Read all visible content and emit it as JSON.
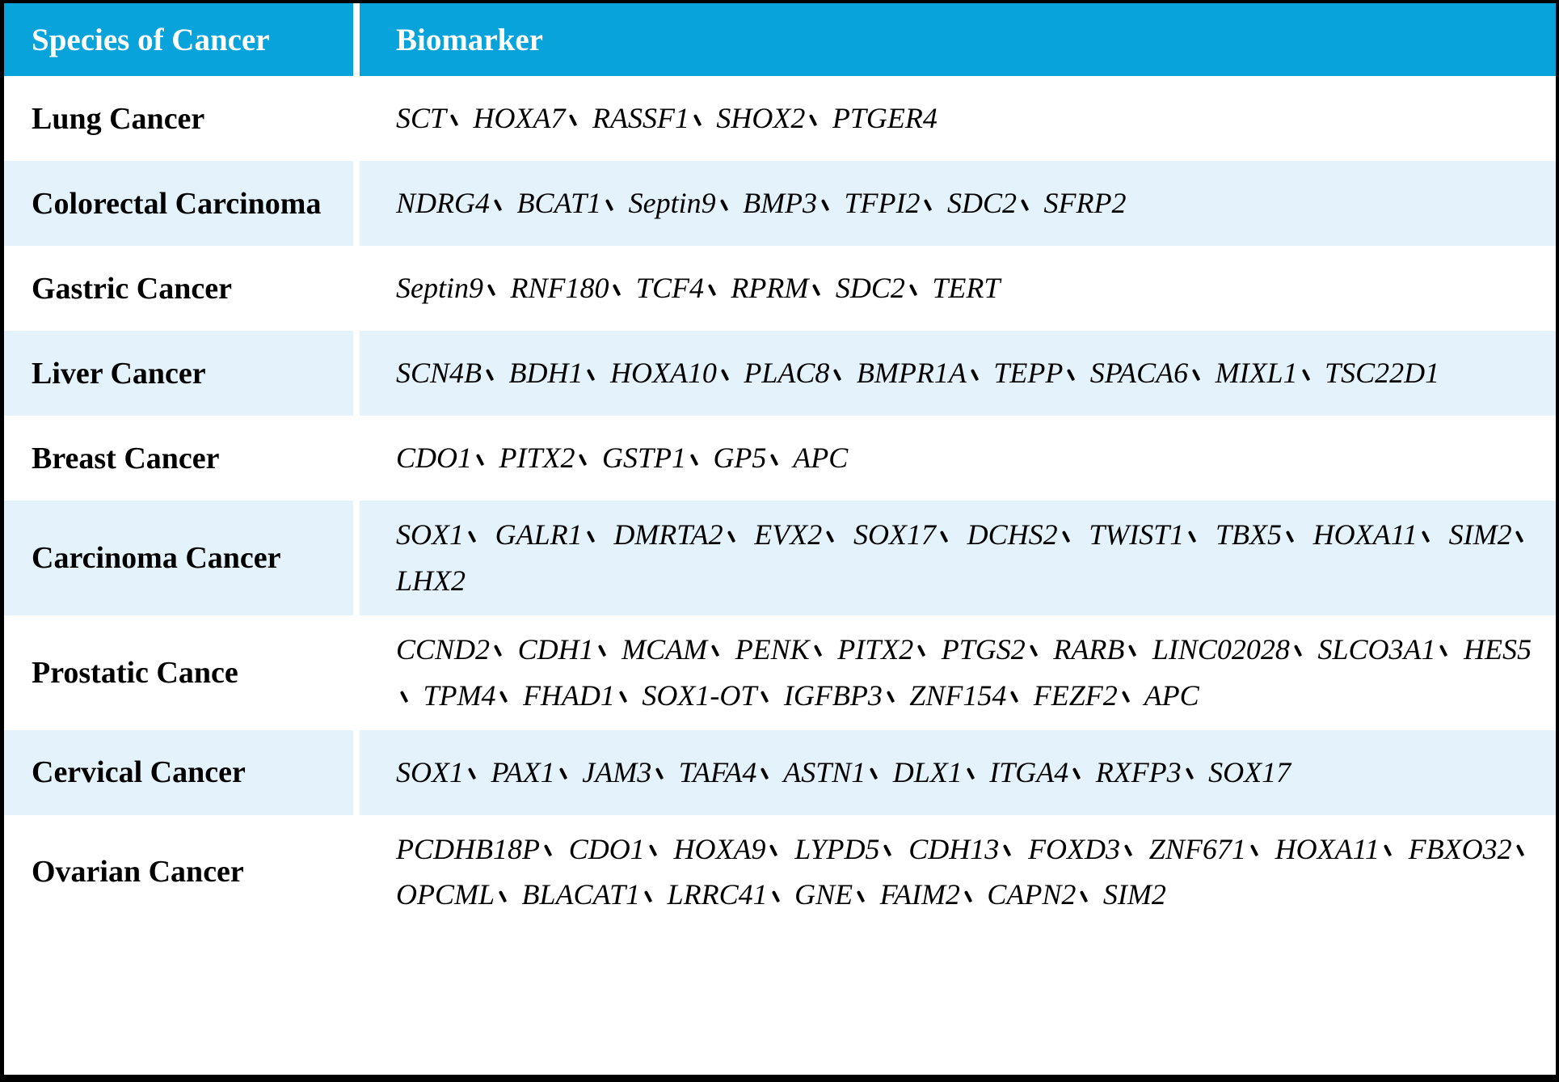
{
  "table": {
    "separator": "、",
    "colors": {
      "header_bg": "#09A3DC",
      "header_text": "#FFFFFF",
      "row_bg": "#FFFFFF",
      "row_alt_bg": "#E4F2FC",
      "border": "#000000",
      "text": "#000000"
    },
    "columns": [
      {
        "label": "Species of Cancer"
      },
      {
        "label": "Biomarker"
      }
    ],
    "rows": [
      {
        "species": "Lung Cancer",
        "biomarkers": [
          "SCT",
          "HOXA7",
          "RASSF1",
          "SHOX2",
          "PTGER4"
        ]
      },
      {
        "species": "Colorectal Carcinoma",
        "biomarkers": [
          "NDRG4",
          "BCAT1",
          "Septin9",
          "BMP3",
          "TFPI2",
          "SDC2",
          "SFRP2"
        ]
      },
      {
        "species": "Gastric Cancer",
        "biomarkers": [
          "Septin9",
          "RNF180",
          "TCF4",
          "RPRM",
          "SDC2",
          "TERT"
        ]
      },
      {
        "species": "Liver Cancer",
        "biomarkers": [
          "SCN4B",
          "BDH1",
          "HOXA10",
          "PLAC8",
          "BMPR1A",
          "TEPP",
          "SPACA6",
          "MIXL1",
          "TSC22D1"
        ]
      },
      {
        "species": "Breast Cancer",
        "biomarkers": [
          "CDO1",
          "PITX2",
          "GSTP1",
          "GP5",
          "APC"
        ]
      },
      {
        "species": "Carcinoma Cancer",
        "biomarkers": [
          "SOX1",
          "GALR1",
          "DMRTA2",
          "EVX2",
          "SOX17",
          "DCHS2",
          "TWIST1",
          "TBX5",
          "HOXA11",
          "SIM2",
          "LHX2"
        ]
      },
      {
        "species": "Prostatic Cance",
        "biomarkers": [
          "CCND2",
          "CDH1",
          "MCAM",
          "PENK",
          "PITX2",
          "PTGS2",
          "RARB",
          "LINC02028",
          "SLCO3A1",
          "HES5",
          "TPM4",
          "FHAD1",
          "SOX1-OT",
          "IGFBP3",
          "ZNF154",
          "FEZF2",
          "APC"
        ]
      },
      {
        "species": "Cervical Cancer",
        "biomarkers": [
          "SOX1",
          "PAX1",
          "JAM3",
          "TAFA4",
          "ASTN1",
          "DLX1",
          "ITGA4",
          "RXFP3",
          "SOX17"
        ]
      },
      {
        "species": "Ovarian Cancer",
        "biomarkers": [
          "PCDHB18P",
          "CDO1",
          "HOXA9",
          "LYPD5",
          "CDH13",
          "FOXD3",
          "ZNF671",
          "HOXA11",
          "FBXO32",
          "OPCML",
          "BLACAT1",
          "LRRC41",
          "GNE",
          "FAIM2",
          "CAPN2",
          "SIM2"
        ]
      }
    ]
  }
}
